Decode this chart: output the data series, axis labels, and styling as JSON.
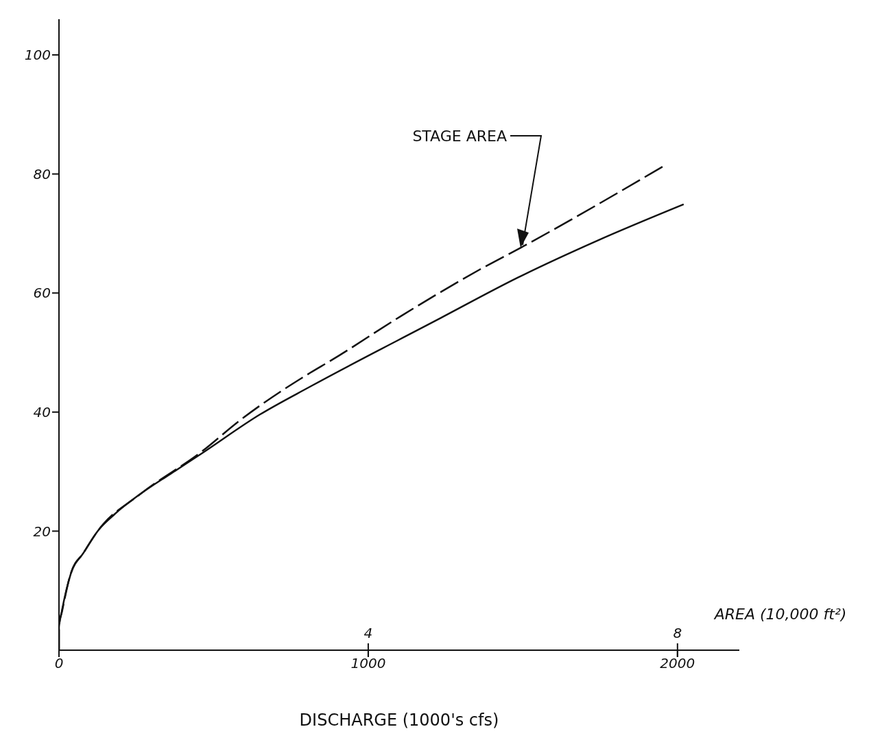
{
  "chart_data": {
    "type": "line",
    "xlabel": "DISCHARGE (1000's cfs)",
    "x2label": "AREA (10,000 ft²)",
    "xlim": [
      0,
      2200
    ],
    "xticks": [
      0,
      1000,
      2000
    ],
    "x2lim": [
      0,
      8.8
    ],
    "x2ticks": [
      4,
      8
    ],
    "ylim": [
      0,
      106
    ],
    "yticks": [
      20,
      40,
      60,
      80,
      100
    ],
    "marker": "none",
    "series": [
      {
        "color": "#111111",
        "line_style": "solid",
        "x": [
          0,
          0,
          9,
          38,
          80,
          125,
          181,
          262,
          360,
          463,
          650,
          813,
          1227,
          1484,
          1741,
          2020
        ],
        "values": [
          0,
          3.9,
          6.5,
          12.8,
          16.4,
          20,
          22.9,
          26.2,
          29.6,
          33.1,
          39.6,
          44.3,
          55.6,
          62.6,
          68.8,
          74.9
        ]
      },
      {
        "name": "STAGE AREA",
        "color": "#111111",
        "line_style": "dashed",
        "axis": "x2",
        "x": [
          0,
          0,
          0.04,
          0.15,
          0.32,
          0.5,
          1.05,
          1.85,
          2.33,
          3.25,
          3.51,
          4.42,
          5.45,
          5.97,
          7.83
        ],
        "values": [
          0,
          3.9,
          6.5,
          12.8,
          16.4,
          20,
          26.2,
          33.4,
          38.5,
          46.6,
          48.6,
          56.1,
          64,
          67.6,
          81.4
        ]
      }
    ]
  }
}
